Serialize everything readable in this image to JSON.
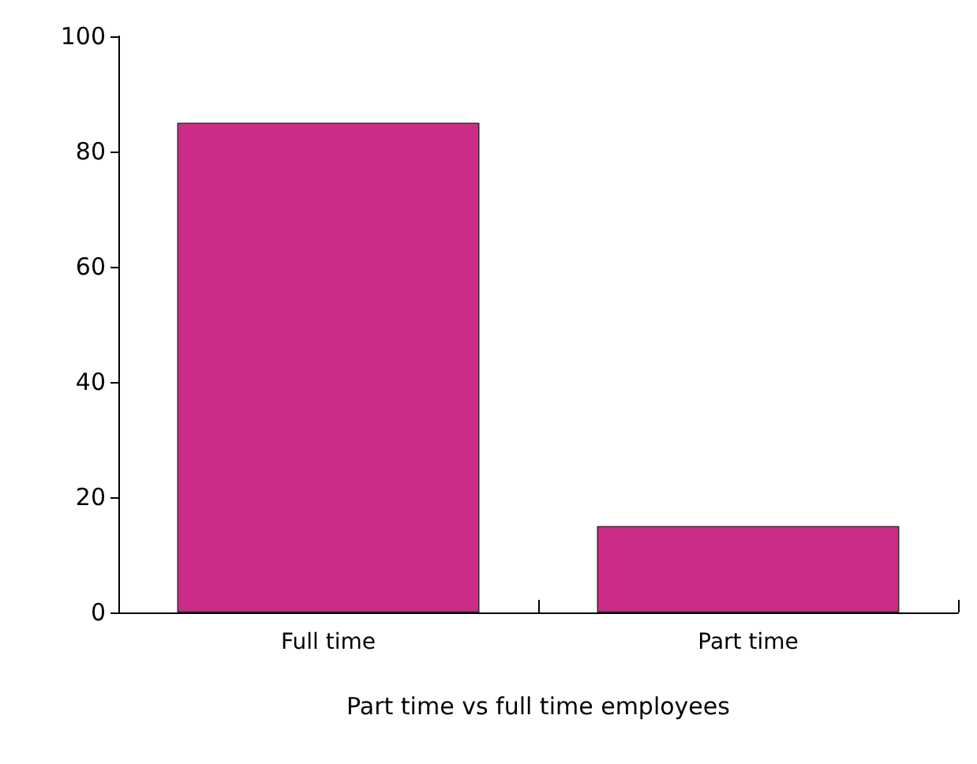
{
  "chart_data": {
    "type": "bar",
    "xlabel": "Part time vs full time employees",
    "categories": [
      "Full time",
      "Part time"
    ],
    "values": [
      85,
      15
    ],
    "color": "#cc2b87",
    "ylim": [
      0,
      100
    ],
    "yticks": [
      0,
      20,
      40,
      60,
      80,
      100
    ],
    "grid": false
  }
}
